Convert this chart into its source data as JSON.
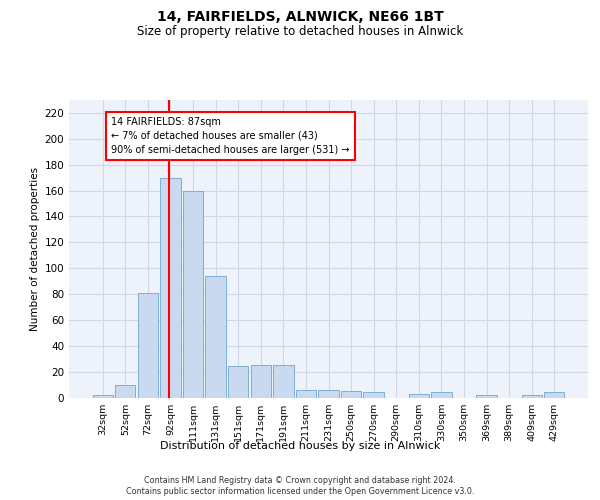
{
  "title_line1": "14, FAIRFIELDS, ALNWICK, NE66 1BT",
  "title_line2": "Size of property relative to detached houses in Alnwick",
  "xlabel": "Distribution of detached houses by size in Alnwick",
  "ylabel": "Number of detached properties",
  "bar_labels": [
    "32sqm",
    "52sqm",
    "72sqm",
    "92sqm",
    "111sqm",
    "131sqm",
    "151sqm",
    "171sqm",
    "191sqm",
    "211sqm",
    "231sqm",
    "250sqm",
    "270sqm",
    "290sqm",
    "310sqm",
    "330sqm",
    "350sqm",
    "369sqm",
    "389sqm",
    "409sqm",
    "429sqm"
  ],
  "bar_values": [
    2,
    10,
    81,
    170,
    160,
    94,
    24,
    25,
    25,
    6,
    6,
    5,
    4,
    0,
    3,
    4,
    0,
    2,
    0,
    2,
    4
  ],
  "bar_color": "#c9d9f0",
  "bar_edgecolor": "#7fafd4",
  "grid_color": "#d0d8e8",
  "background_color": "#eef2fb",
  "red_line_x": 2.95,
  "annotation_text": "14 FAIRFIELDS: 87sqm\n← 7% of detached houses are smaller (43)\n90% of semi-detached houses are larger (531) →",
  "ylim_max": 230,
  "yticks": [
    0,
    20,
    40,
    60,
    80,
    100,
    120,
    140,
    160,
    180,
    200,
    220
  ],
  "title_fontsize": 10,
  "subtitle_fontsize": 8.5,
  "footer_line1": "Contains HM Land Registry data © Crown copyright and database right 2024.",
  "footer_line2": "Contains public sector information licensed under the Open Government Licence v3.0."
}
